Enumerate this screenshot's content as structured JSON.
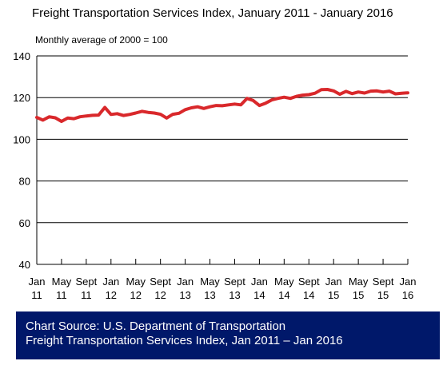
{
  "chart_data": {
    "type": "line",
    "title": "Freight Transportation Services Index, January 2011 - January 2016",
    "subtitle": "Monthly average of 2000 = 100",
    "xlabel": "",
    "ylabel": "",
    "ylim": [
      40,
      140
    ],
    "yticks": [
      "40",
      "60",
      "80",
      "100",
      "120",
      "140"
    ],
    "xtick_labels": [
      [
        "Jan",
        "11"
      ],
      [
        "May",
        "11"
      ],
      [
        "Sept",
        "11"
      ],
      [
        "Jan",
        "12"
      ],
      [
        "May",
        "12"
      ],
      [
        "Sept",
        "12"
      ],
      [
        "Jan",
        "13"
      ],
      [
        "May",
        "13"
      ],
      [
        "Sept",
        "13"
      ],
      [
        "Jan",
        "14"
      ],
      [
        "May",
        "14"
      ],
      [
        "Sept",
        "14"
      ],
      [
        "Jan",
        "15"
      ],
      [
        "May",
        "15"
      ],
      [
        "Sept",
        "15"
      ],
      [
        "Jan",
        "16"
      ]
    ],
    "grid": true,
    "line_color": "#d9282b",
    "series": [
      {
        "x": [
          "2011-01",
          "2011-02",
          "2011-03",
          "2011-04",
          "2011-05",
          "2011-06",
          "2011-07",
          "2011-08",
          "2011-09",
          "2011-10",
          "2011-11",
          "2011-12",
          "2012-01",
          "2012-02",
          "2012-03",
          "2012-04",
          "2012-05",
          "2012-06",
          "2012-07",
          "2012-08",
          "2012-09",
          "2012-10",
          "2012-11",
          "2012-12",
          "2013-01",
          "2013-02",
          "2013-03",
          "2013-04",
          "2013-05",
          "2013-06",
          "2013-07",
          "2013-08",
          "2013-09",
          "2013-10",
          "2013-11",
          "2013-12",
          "2014-01",
          "2014-02",
          "2014-03",
          "2014-04",
          "2014-05",
          "2014-06",
          "2014-07",
          "2014-08",
          "2014-09",
          "2014-10",
          "2014-11",
          "2014-12",
          "2015-01",
          "2015-02",
          "2015-03",
          "2015-04",
          "2015-05",
          "2015-06",
          "2015-07",
          "2015-08",
          "2015-09",
          "2015-10",
          "2015-11",
          "2015-12",
          "2016-01"
        ],
        "values": [
          110.5,
          109.2,
          110.8,
          110.3,
          108.6,
          110.2,
          109.9,
          110.8,
          111.2,
          111.5,
          111.6,
          115.3,
          111.9,
          112.3,
          111.4,
          111.9,
          112.6,
          113.4,
          112.9,
          112.6,
          112.0,
          110.2,
          112.0,
          112.5,
          114.2,
          115.1,
          115.6,
          114.8,
          115.6,
          116.2,
          116.1,
          116.5,
          116.9,
          116.5,
          119.6,
          118.6,
          116.2,
          117.3,
          118.9,
          119.6,
          120.2,
          119.6,
          120.6,
          121.2,
          121.4,
          122.1,
          123.8,
          123.9,
          123.2,
          121.6,
          123.0,
          121.9,
          122.7,
          122.2,
          123.1,
          123.2,
          122.7,
          123.1,
          121.8,
          122.1,
          122.3
        ]
      }
    ]
  },
  "source": {
    "line1": "Chart Source: U.S. Department of Transportation",
    "line2": "Freight Transportation Services Index, Jan 2011 – Jan 2016"
  }
}
